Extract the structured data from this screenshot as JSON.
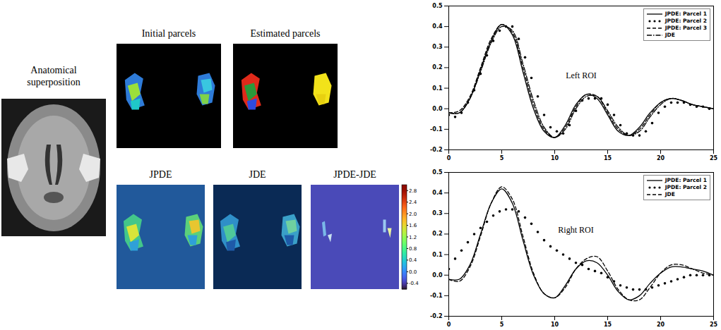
{
  "figure": {
    "anatomical_label": "Anatomical superposition",
    "image_titles": {
      "initial": "Initial parcels",
      "estimated": "Estimated parcels",
      "jpde": "JPDE",
      "jde": "JDE",
      "difference": "JPDE-JDE"
    },
    "colorbar": {
      "range": [
        -0.6,
        3.0
      ],
      "color": "jet",
      "ticks": [
        2.8,
        2.4,
        {
          "value": 2,
          "label": "2.0"
        },
        1.6,
        1.2,
        0.8,
        0.4,
        {
          "value": 0,
          "label": "0.0"
        },
        -0.4
      ]
    }
  },
  "chart_data": [
    {
      "type": "line",
      "legend": "upper right",
      "grid": false,
      "xlim": [
        0,
        25
      ],
      "xticks": [
        0,
        5,
        10,
        15,
        20,
        25
      ],
      "ylim": [
        -0.2,
        0.5
      ],
      "yticks": [
        -0.2,
        -0.1,
        {
          "value": 0,
          "label": "0.0"
        },
        0.1,
        0.2,
        0.3,
        0.4,
        0.5
      ],
      "annotations": [
        {
          "text": "Left ROI",
          "x": 12.5,
          "y": 0.16
        }
      ],
      "series": [
        {
          "name": "JPDE: Parcel 1",
          "color": "#000000",
          "line_style": "solid",
          "x": [
            0,
            1,
            2,
            3,
            4,
            5,
            6,
            7,
            8,
            9,
            10,
            11,
            12,
            13,
            14,
            15,
            16,
            17,
            18,
            19,
            20,
            21,
            22,
            23,
            24,
            25
          ],
          "values": [
            -0.02,
            -0.02,
            0.05,
            0.19,
            0.33,
            0.41,
            0.36,
            0.18,
            0.0,
            -0.11,
            -0.14,
            -0.08,
            0.02,
            0.07,
            0.05,
            -0.03,
            -0.11,
            -0.13,
            -0.09,
            -0.02,
            0.03,
            0.05,
            0.04,
            0.02,
            0.01,
            0.0
          ]
        },
        {
          "name": "JPDE: Parcel 2",
          "color": "#000000",
          "type": "scatter",
          "marker": "circle",
          "x": [
            0,
            0.6,
            1.2,
            1.8,
            2.4,
            3.0,
            3.6,
            4.2,
            4.8,
            5.4,
            6.0,
            6.6,
            7.2,
            7.8,
            8.4,
            9.0,
            9.6,
            10.2,
            10.8,
            11.4,
            12.0,
            12.6,
            13.2,
            13.8,
            14.4,
            15.0,
            15.6,
            16.2,
            16.8,
            17.4,
            18.0,
            18.6,
            19.2,
            19.8,
            20.4,
            21.0,
            21.6,
            22.2,
            22.8,
            23.4,
            24.0,
            24.6
          ],
          "values": [
            -0.03,
            -0.04,
            -0.02,
            0.03,
            0.09,
            0.17,
            0.26,
            0.33,
            0.38,
            0.4,
            0.4,
            0.34,
            0.25,
            0.15,
            0.06,
            -0.03,
            -0.09,
            -0.11,
            -0.12,
            -0.08,
            -0.01,
            0.04,
            0.05,
            0.05,
            0.05,
            0.02,
            -0.03,
            -0.08,
            -0.12,
            -0.13,
            -0.13,
            -0.11,
            -0.07,
            -0.02,
            0.01,
            0.03,
            0.03,
            0.03,
            0.02,
            0.01,
            0.01,
            0.0
          ]
        },
        {
          "name": "JPDE: Parcel 3",
          "color": "#000000",
          "line_style": "dashed",
          "x": [
            0,
            1,
            2,
            3,
            4,
            5,
            6,
            7,
            8,
            9,
            10,
            11,
            12,
            13,
            14,
            15,
            16,
            17,
            18,
            19,
            20,
            21,
            22,
            23,
            24,
            25
          ],
          "values": [
            -0.02,
            -0.01,
            0.06,
            0.2,
            0.34,
            0.41,
            0.37,
            0.2,
            0.02,
            -0.1,
            -0.14,
            -0.09,
            0.01,
            0.07,
            0.06,
            -0.02,
            -0.1,
            -0.13,
            -0.1,
            -0.03,
            0.03,
            0.05,
            0.04,
            0.02,
            0.01,
            0.0
          ]
        },
        {
          "name": "JDE",
          "color": "#000000",
          "line_style": "dashdot",
          "x": [
            0,
            1,
            2,
            3,
            4,
            5,
            6,
            7,
            8,
            9,
            10,
            11,
            12,
            13,
            14,
            15,
            16,
            17,
            18,
            19,
            20,
            21,
            22,
            23,
            24,
            25
          ],
          "values": [
            -0.02,
            -0.02,
            0.05,
            0.18,
            0.32,
            0.4,
            0.38,
            0.22,
            0.04,
            -0.09,
            -0.14,
            -0.1,
            0.0,
            0.06,
            0.06,
            -0.01,
            -0.09,
            -0.13,
            -0.11,
            -0.04,
            0.02,
            0.05,
            0.04,
            0.02,
            0.01,
            0.0
          ]
        }
      ]
    },
    {
      "type": "line",
      "legend": "upper right",
      "grid": false,
      "xlim": [
        0,
        25
      ],
      "xticks": [
        0,
        5,
        10,
        15,
        20,
        25
      ],
      "ylim": [
        -0.2,
        0.5
      ],
      "yticks": [
        -0.2,
        -0.1,
        {
          "value": 0,
          "label": "0.0"
        },
        0.1,
        0.2,
        0.3,
        0.4,
        0.5
      ],
      "annotations": [
        {
          "text": "Right ROI",
          "x": 12,
          "y": 0.22
        }
      ],
      "series": [
        {
          "name": "JPDE: Parcel 1",
          "color": "#000000",
          "line_style": "solid",
          "x": [
            0,
            1,
            2,
            3,
            4,
            5,
            6,
            7,
            8,
            9,
            10,
            11,
            12,
            13,
            14,
            15,
            16,
            17,
            18,
            19,
            20,
            21,
            22,
            23,
            24,
            25
          ],
          "values": [
            -0.02,
            -0.02,
            0.05,
            0.2,
            0.35,
            0.42,
            0.35,
            0.17,
            0.0,
            -0.09,
            -0.11,
            -0.05,
            0.03,
            0.07,
            0.06,
            0.0,
            -0.08,
            -0.12,
            -0.1,
            -0.04,
            0.01,
            0.04,
            0.04,
            0.03,
            0.02,
            0.0
          ]
        },
        {
          "name": "JPDE: Parcel 2",
          "color": "#000000",
          "type": "scatter",
          "marker": "circle",
          "x": [
            0,
            0.6,
            1.2,
            1.8,
            2.4,
            3.0,
            3.6,
            4.2,
            4.8,
            5.4,
            6.0,
            6.6,
            7.2,
            7.8,
            8.4,
            9.0,
            9.6,
            10.2,
            10.8,
            11.4,
            12.0,
            12.6,
            13.2,
            13.8,
            14.4,
            15.0,
            15.6,
            16.2,
            16.8,
            17.4,
            18.0,
            18.6,
            19.2,
            19.8,
            20.4,
            21.0,
            21.6,
            22.2,
            22.8,
            23.4,
            24.0,
            24.6
          ],
          "values": [
            0.03,
            0.08,
            0.12,
            0.16,
            0.2,
            0.23,
            0.26,
            0.29,
            0.31,
            0.32,
            0.32,
            0.31,
            0.28,
            0.25,
            0.21,
            0.17,
            0.14,
            0.12,
            0.1,
            0.08,
            0.06,
            0.05,
            0.03,
            0.02,
            0.01,
            -0.01,
            -0.03,
            -0.05,
            -0.06,
            -0.07,
            -0.07,
            -0.07,
            -0.06,
            -0.05,
            -0.04,
            -0.03,
            -0.02,
            -0.01,
            0.0,
            0.0,
            0.0,
            0.0
          ]
        },
        {
          "name": "JDE",
          "color": "#000000",
          "line_style": "dashed",
          "x": [
            0,
            1,
            2,
            3,
            4,
            5,
            6,
            7,
            8,
            9,
            10,
            11,
            12,
            13,
            14,
            15,
            16,
            17,
            18,
            19,
            20,
            21,
            22,
            23,
            24,
            25
          ],
          "values": [
            -0.02,
            -0.03,
            0.04,
            0.19,
            0.35,
            0.43,
            0.37,
            0.19,
            0.01,
            -0.09,
            -0.11,
            -0.06,
            0.03,
            0.08,
            0.09,
            0.02,
            -0.07,
            -0.12,
            -0.12,
            -0.06,
            0.01,
            0.05,
            0.05,
            0.03,
            0.01,
            0.0
          ]
        }
      ]
    }
  ]
}
